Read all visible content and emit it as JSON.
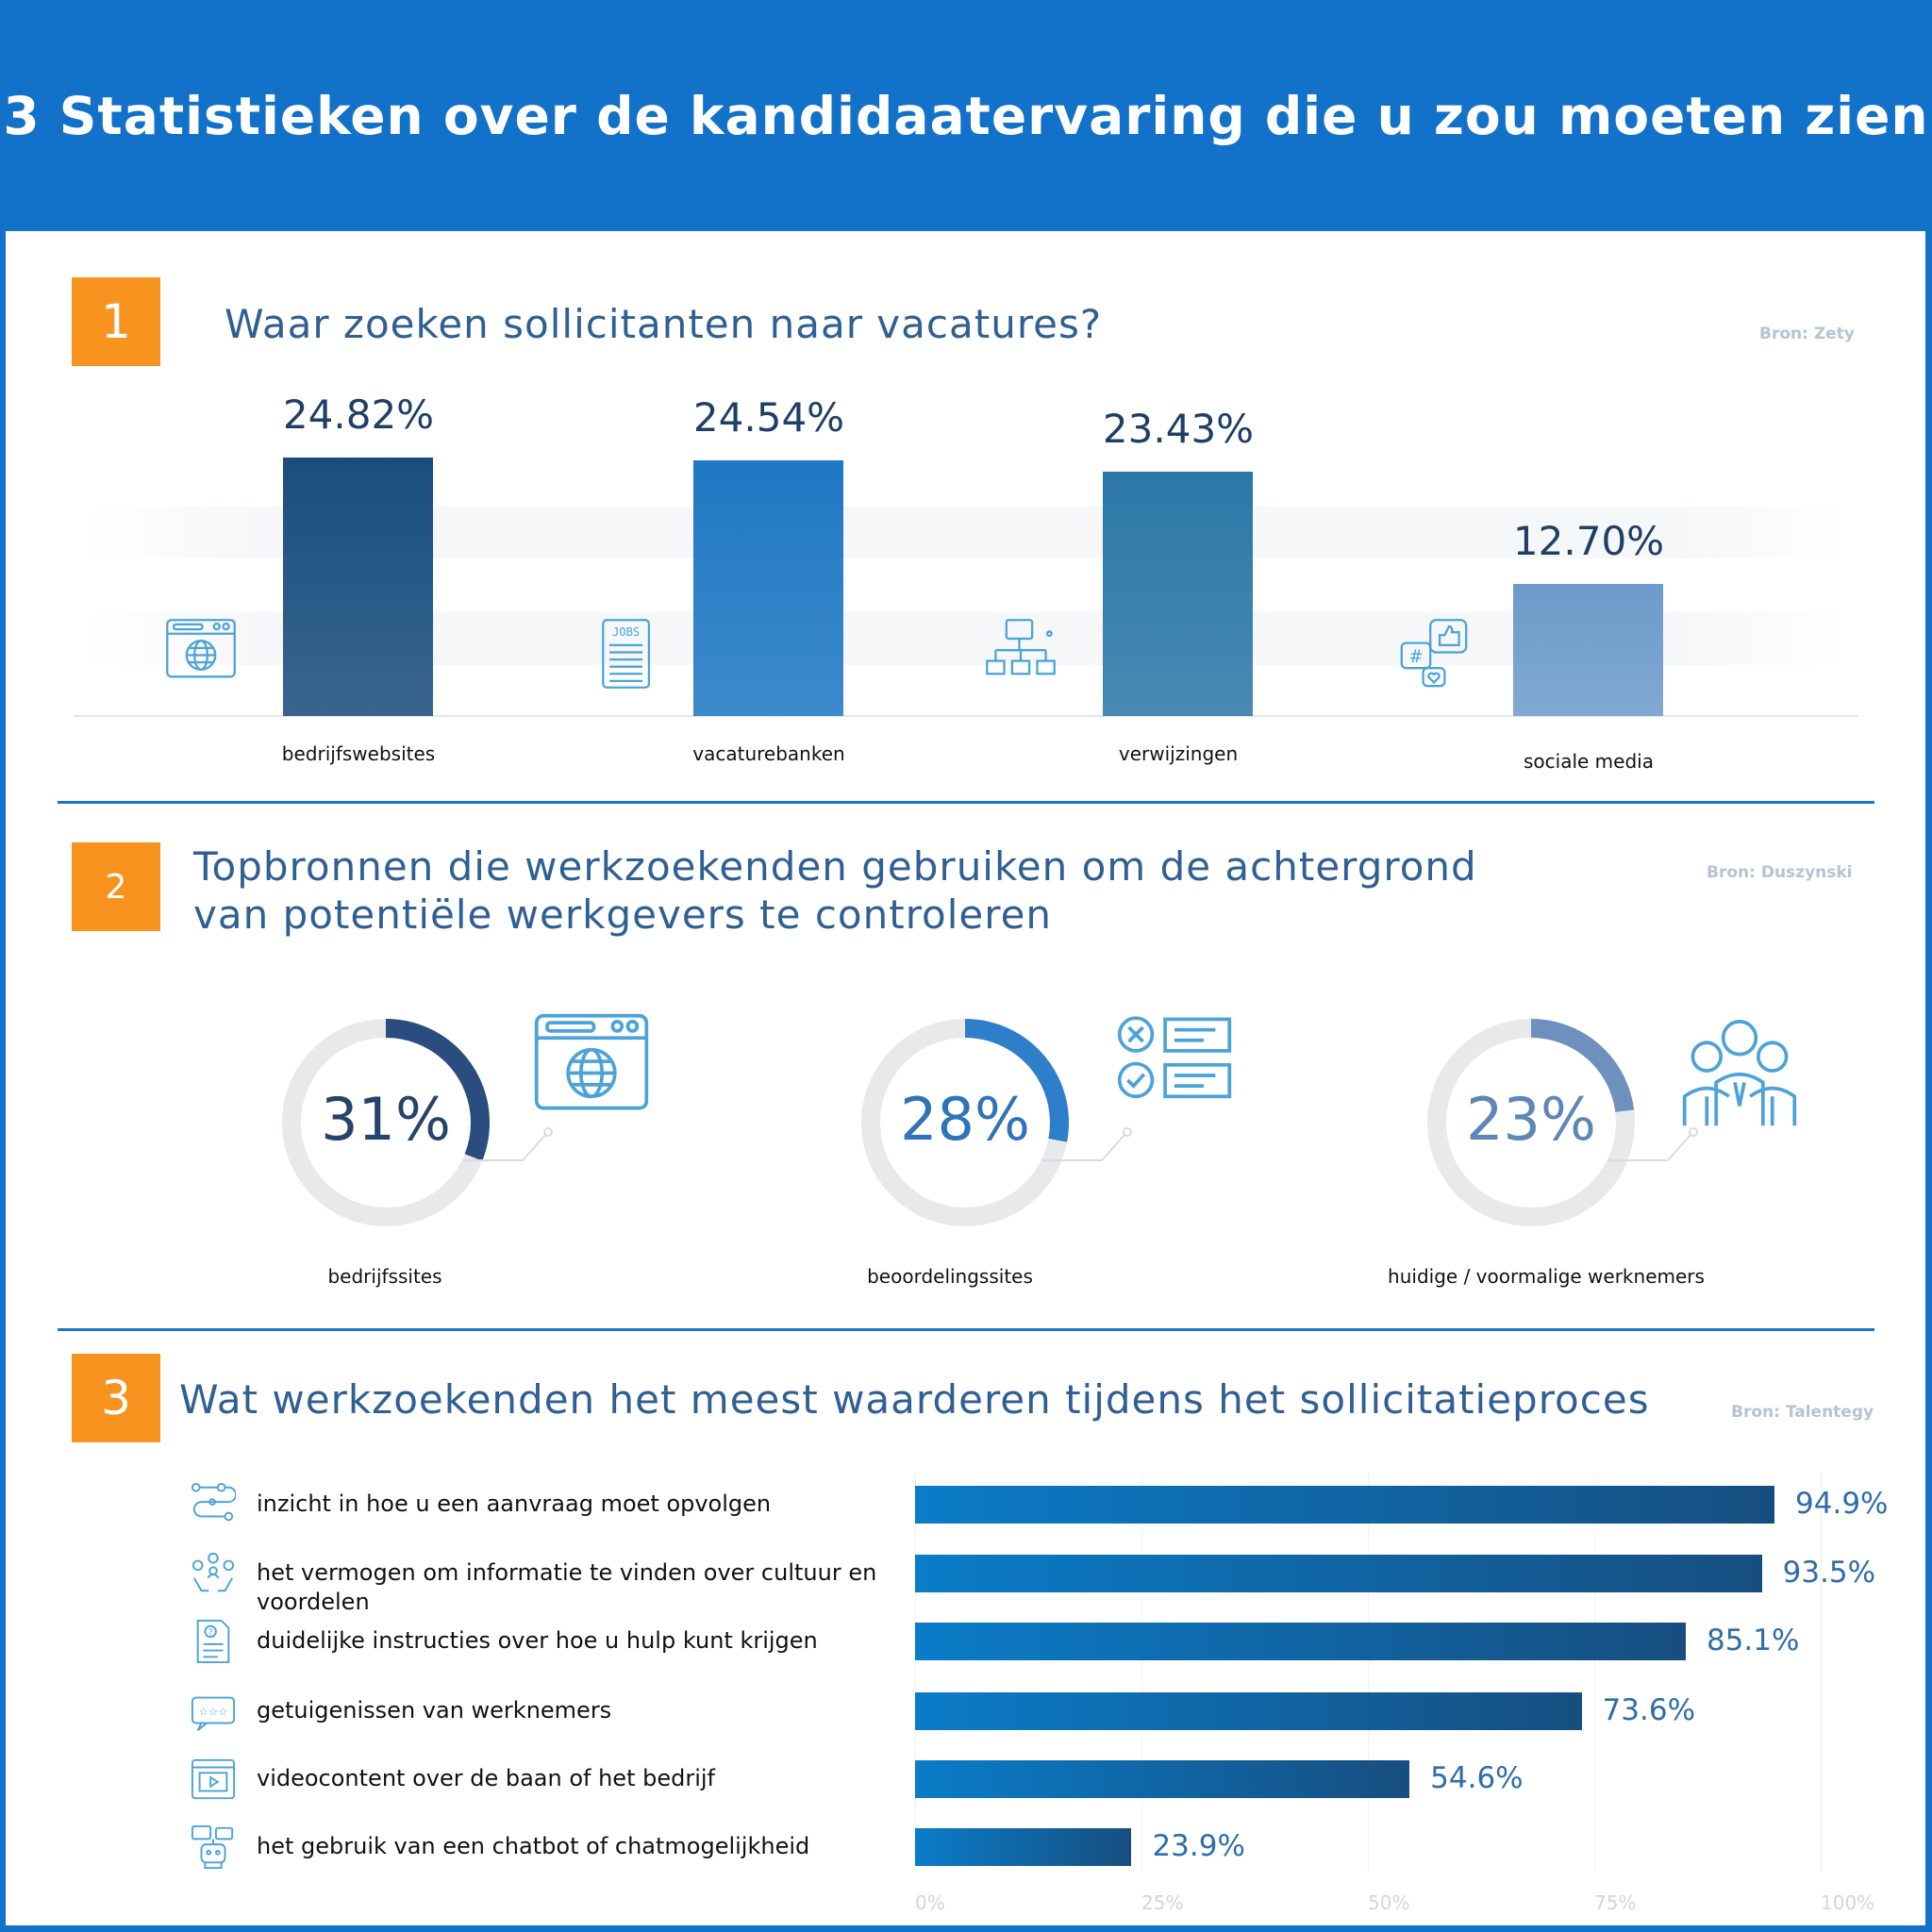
{
  "title": "3 Statistieken over de kandidaatervaring die u zou moeten zien",
  "colors": {
    "header": "#1271C8",
    "badge": "#F7931E",
    "icon": "#4BA3D9"
  },
  "sections": [
    {
      "number": "1",
      "title": "Waar zoeken sollicitanten naar vacatures?",
      "source": "Bron: Zety"
    },
    {
      "number": "2",
      "title_line1": "Topbronnen die werkzoekenden gebruiken om de achtergrond",
      "title_line2": "van potentiële werkgevers te controleren",
      "source": "Bron: Duszynski"
    },
    {
      "number": "3",
      "title": "Wat werkzoekenden het meest waarderen tijdens het sollicitatieproces",
      "source": "Bron: Talentegy"
    }
  ],
  "chart_data": [
    {
      "type": "bar",
      "categories": [
        "bedrijfswebsites",
        "vacaturebanken",
        "verwijzingen",
        "sociale media"
      ],
      "values": [
        24.82,
        24.54,
        23.43,
        12.7
      ],
      "labels": [
        "24.82%",
        "24.54%",
        "23.43%",
        "12.70%"
      ],
      "colors": [
        "#1A4E7E",
        "#1F78C3",
        "#2C78A8",
        "#6E9BCB"
      ],
      "icons": [
        "browser-globe-icon",
        "jobs-list-icon",
        "network-icon",
        "social-media-icon"
      ],
      "ylim": [
        0,
        25
      ]
    },
    {
      "type": "pie",
      "variant": "donut",
      "categories": [
        "bedrijfssites",
        "beoordelingssites",
        "huidige / voormalige werknemers"
      ],
      "values": [
        31,
        28,
        23
      ],
      "labels": [
        "31%",
        "28%",
        "23%"
      ],
      "colors": [
        "#2B4C7E",
        "#2F7EC9",
        "#6D90BE"
      ],
      "icons": [
        "browser-globe-icon",
        "checklist-icon",
        "employees-icon"
      ]
    },
    {
      "type": "bar",
      "orientation": "horizontal",
      "categories": [
        "inzicht in hoe u een aanvraag moet opvolgen",
        "het vermogen om informatie te vinden over cultuur en voordelen",
        "duidelijke instructies over hoe u hulp kunt krijgen",
        "getuigenissen van werknemers",
        "videocontent over de baan of het bedrijf",
        "het gebruik van een chatbot of chatmogelijkheid"
      ],
      "values": [
        94.9,
        93.5,
        85.1,
        73.6,
        54.6,
        23.9
      ],
      "labels": [
        "94.9%",
        "93.5%",
        "85.1%",
        "73.6%",
        "54.6%",
        "23.9%"
      ],
      "xlim": [
        0,
        100
      ],
      "xticks": [
        "0%",
        "25%",
        "50%",
        "75%",
        "100%"
      ],
      "grid": true,
      "icons": [
        "workflow-icon",
        "culture-icon",
        "help-document-icon",
        "testimonial-icon",
        "video-icon",
        "chatbot-icon"
      ]
    }
  ]
}
